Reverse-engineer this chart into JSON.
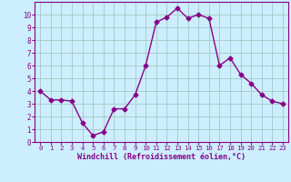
{
  "x": [
    0,
    1,
    2,
    3,
    4,
    5,
    6,
    7,
    8,
    9,
    10,
    11,
    12,
    13,
    14,
    15,
    16,
    17,
    18,
    19,
    20,
    21,
    22,
    23
  ],
  "y": [
    4.0,
    3.3,
    3.3,
    3.2,
    1.5,
    0.5,
    0.8,
    2.6,
    2.6,
    3.7,
    6.0,
    9.4,
    9.8,
    10.5,
    9.7,
    10.0,
    9.7,
    6.0,
    6.6,
    5.3,
    4.6,
    3.7,
    3.2,
    3.0
  ],
  "line_color": "#880088",
  "marker": "D",
  "marker_size": 2.5,
  "bg_color": "#cceeff",
  "grid_color": "#aacccc",
  "xlabel": "Windchill (Refroidissement éolien,°C)",
  "xlabel_color": "#880088",
  "tick_color": "#880088",
  "ylim": [
    0,
    11
  ],
  "xlim": [
    -0.5,
    23.5
  ],
  "yticks": [
    0,
    1,
    2,
    3,
    4,
    5,
    6,
    7,
    8,
    9,
    10
  ],
  "xticks": [
    0,
    1,
    2,
    3,
    4,
    5,
    6,
    7,
    8,
    9,
    10,
    11,
    12,
    13,
    14,
    15,
    16,
    17,
    18,
    19,
    20,
    21,
    22,
    23
  ],
  "spine_color": "#880088",
  "linewidth": 1.0
}
